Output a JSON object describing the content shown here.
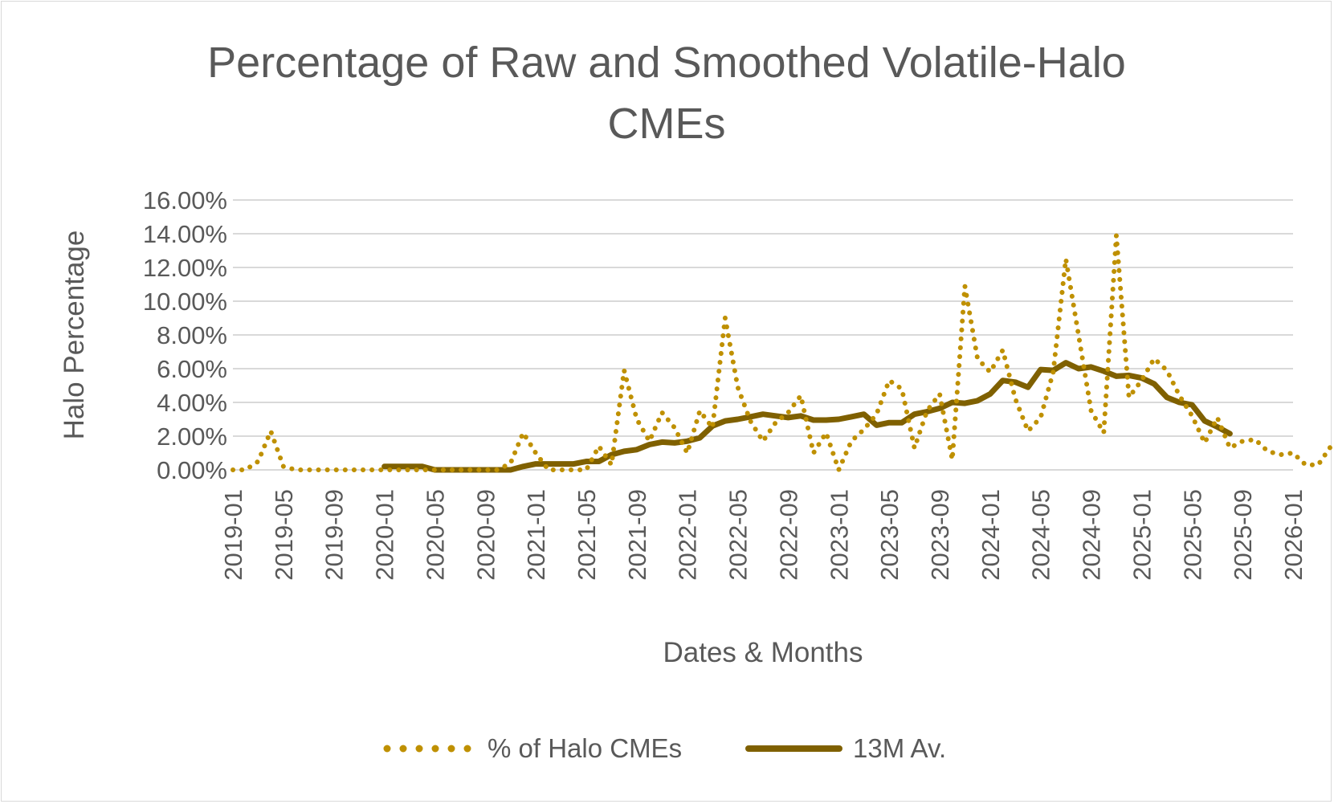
{
  "chart_data": {
    "type": "line",
    "title": [
      "Percentage of Raw and Smoothed Volatile-Halo",
      "CMEs"
    ],
    "xlabel": "Dates & Months",
    "ylabel": "Halo Percentage",
    "ylim": [
      0,
      16
    ],
    "yticks": [
      "0.00%",
      "2.00%",
      "4.00%",
      "6.00%",
      "8.00%",
      "10.00%",
      "12.00%",
      "14.00%",
      "16.00%"
    ],
    "xticks": [
      "2019-01",
      "2019-05",
      "2019-09",
      "2020-01",
      "2020-05",
      "2020-09",
      "2021-01",
      "2021-05",
      "2021-09",
      "2022-01",
      "2022-05",
      "2022-09",
      "2023-01",
      "2023-05",
      "2023-09",
      "2024-01",
      "2024-05",
      "2024-09",
      "2025-01",
      "2025-05",
      "2025-09",
      "2026-01"
    ],
    "x_start": "2019-01",
    "x_months_span": 84,
    "grid": true,
    "legend_position": "bottom",
    "colors": {
      "raw": "#BF9000",
      "smoothed": "#7F6000",
      "grid": "#d9d9d9",
      "text": "#595959"
    },
    "series": [
      {
        "name": "% of Halo CMEs",
        "style": "dotted",
        "values": [
          0,
          0,
          0.5,
          2.3,
          0.2,
          0,
          0,
          0,
          0,
          0,
          0,
          0,
          0,
          0,
          0,
          0,
          0,
          0,
          0,
          0,
          0,
          0,
          0.4,
          2.2,
          1.0,
          0,
          0,
          0,
          0,
          1.4,
          0.3,
          5.9,
          3.0,
          1.7,
          3.4,
          2.5,
          1.0,
          3.5,
          2.5,
          9.0,
          4.9,
          2.9,
          1.7,
          2.8,
          3.4,
          4.4,
          1.0,
          2.2,
          0,
          1.7,
          2.4,
          3.3,
          5.3,
          4.8,
          1.3,
          3.5,
          4.5,
          0.6,
          10.9,
          6.6,
          5.8,
          7.1,
          4.2,
          2.3,
          3.1,
          5.8,
          12.5,
          8.0,
          3.5,
          2.2,
          13.9,
          4.3,
          5.3,
          6.6,
          5.9,
          4.4,
          3.2,
          1.6,
          3.1,
          1.3,
          1.7,
          1.8,
          1.1,
          0.9,
          1.0,
          0.3,
          0.3,
          1.4
        ]
      },
      {
        "name": "13M Av.",
        "style": "solid",
        "start_index": 12,
        "values": [
          0.2,
          0.2,
          0.2,
          0.2,
          0,
          0,
          0,
          0,
          0,
          0,
          0,
          0.2,
          0.35,
          0.35,
          0.35,
          0.35,
          0.5,
          0.5,
          0.9,
          1.1,
          1.2,
          1.5,
          1.65,
          1.6,
          1.7,
          1.9,
          2.6,
          2.9,
          3.0,
          3.15,
          3.3,
          3.2,
          3.1,
          3.2,
          2.95,
          2.95,
          3.0,
          3.15,
          3.3,
          2.65,
          2.8,
          2.8,
          3.3,
          3.45,
          3.65,
          4.0,
          3.95,
          4.1,
          4.5,
          5.3,
          5.2,
          4.9,
          5.95,
          5.9,
          6.35,
          6.0,
          6.1,
          5.85,
          5.55,
          5.6,
          5.45,
          5.1,
          4.3,
          4.0,
          3.85,
          2.9,
          2.55,
          2.15
        ]
      }
    ]
  }
}
